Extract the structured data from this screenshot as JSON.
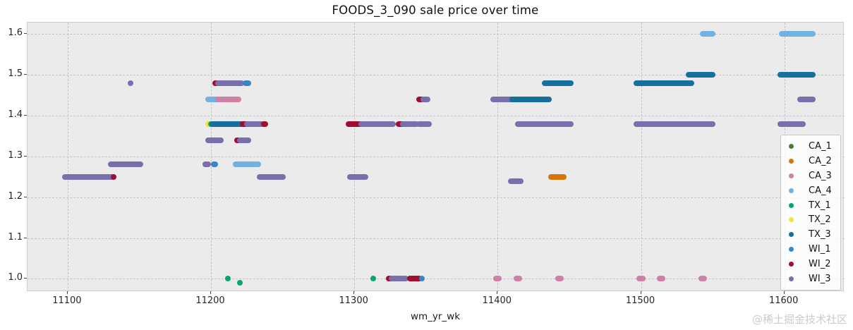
{
  "watermark": "@稀土掘金技术社区",
  "chart_data": {
    "type": "scatter",
    "title": "FOODS_3_090 sale price over time",
    "xlabel": "wm_yr_wk",
    "ylabel": "",
    "grid": true,
    "legend_position": "right",
    "x_ticks": [
      11100,
      11200,
      11300,
      11400,
      11500,
      11600
    ],
    "y_ticks": [
      1.0,
      1.1,
      1.2,
      1.3,
      1.4,
      1.5,
      1.6
    ],
    "x_range": [
      11072,
      11642
    ],
    "y_range": [
      0.968,
      1.628
    ],
    "series": [
      {
        "name": "CA_1",
        "color": "#4f7a28"
      },
      {
        "name": "CA_2",
        "color": "#d9760b"
      },
      {
        "name": "CA_3",
        "color": "#ce80a6"
      },
      {
        "name": "CA_4",
        "color": "#70b3e1"
      },
      {
        "name": "TX_1",
        "color": "#07a66e"
      },
      {
        "name": "TX_2",
        "color": "#f0e442"
      },
      {
        "name": "TX_3",
        "color": "#15709f"
      },
      {
        "name": "WI_1",
        "color": "#3a86c4"
      },
      {
        "name": "WI_2",
        "color": "#a30c31"
      },
      {
        "name": "WI_3",
        "color": "#7a6fad"
      }
    ],
    "points": [
      {
        "s": "WI_3",
        "x1": 11098,
        "x2": 11132,
        "y": 1.25
      },
      {
        "s": "WI_2",
        "x1": 11132,
        "x2": 11132,
        "y": 1.25
      },
      {
        "s": "WI_3",
        "x1": 11130,
        "x2": 11151,
        "y": 1.28
      },
      {
        "s": "WI_3",
        "x1": 11144,
        "x2": 11144,
        "y": 1.48
      },
      {
        "s": "WI_2",
        "x1": 11203,
        "x2": 11205,
        "y": 1.48
      },
      {
        "s": "WI_3",
        "x1": 11205,
        "x2": 11221,
        "y": 1.48
      },
      {
        "s": "WI_1",
        "x1": 11224,
        "x2": 11226,
        "y": 1.48
      },
      {
        "s": "CA_4",
        "x1": 11198,
        "x2": 11206,
        "y": 1.44
      },
      {
        "s": "CA_3",
        "x1": 11205,
        "x2": 11219,
        "y": 1.44
      },
      {
        "s": "TX_2",
        "x1": 11198,
        "x2": 11200,
        "y": 1.38
      },
      {
        "s": "TX_1",
        "x1": 11200,
        "x2": 11201,
        "y": 1.38
      },
      {
        "s": "TX_3",
        "x1": 11201,
        "x2": 11221,
        "y": 1.38
      },
      {
        "s": "WI_2",
        "x1": 11222,
        "x2": 11226,
        "y": 1.38
      },
      {
        "s": "WI_3",
        "x1": 11225,
        "x2": 11236,
        "y": 1.38
      },
      {
        "s": "WI_2",
        "x1": 11237,
        "x2": 11238,
        "y": 1.38
      },
      {
        "s": "WI_3",
        "x1": 11198,
        "x2": 11207,
        "y": 1.34
      },
      {
        "s": "WI_2",
        "x1": 11218,
        "x2": 11219,
        "y": 1.34
      },
      {
        "s": "WI_3",
        "x1": 11220,
        "x2": 11226,
        "y": 1.34
      },
      {
        "s": "WI_3",
        "x1": 11196,
        "x2": 11198,
        "y": 1.28
      },
      {
        "s": "WI_1",
        "x1": 11202,
        "x2": 11203,
        "y": 1.28
      },
      {
        "s": "CA_4",
        "x1": 11217,
        "x2": 11233,
        "y": 1.28
      },
      {
        "s": "WI_3",
        "x1": 11234,
        "x2": 11250,
        "y": 1.25
      },
      {
        "s": "WI_2",
        "x1": 11296,
        "x2": 11306,
        "y": 1.38
      },
      {
        "s": "WI_3",
        "x1": 11305,
        "x2": 11327,
        "y": 1.38
      },
      {
        "s": "WI_2",
        "x1": 11331,
        "x2": 11334,
        "y": 1.38
      },
      {
        "s": "WI_3",
        "x1": 11334,
        "x2": 11343,
        "y": 1.38
      },
      {
        "s": "WI_3",
        "x1": 11345,
        "x2": 11352,
        "y": 1.38
      },
      {
        "s": "WI_2",
        "x1": 11345,
        "x2": 11347,
        "y": 1.44
      },
      {
        "s": "WI_3",
        "x1": 11348,
        "x2": 11351,
        "y": 1.44
      },
      {
        "s": "WI_3",
        "x1": 11297,
        "x2": 11308,
        "y": 1.25
      },
      {
        "s": "TX_1",
        "x1": 11212,
        "x2": 11212,
        "y": 1.0
      },
      {
        "s": "TX_1",
        "x1": 11220,
        "x2": 11220,
        "y": 0.99
      },
      {
        "s": "TX_1",
        "x1": 11313,
        "x2": 11313,
        "y": 1.0
      },
      {
        "s": "WI_2",
        "x1": 11324,
        "x2": 11326,
        "y": 1.0
      },
      {
        "s": "WI_3",
        "x1": 11326,
        "x2": 11336,
        "y": 1.0
      },
      {
        "s": "WI_2",
        "x1": 11339,
        "x2": 11345,
        "y": 1.0
      },
      {
        "s": "WI_1",
        "x1": 11347,
        "x2": 11347,
        "y": 1.0
      },
      {
        "s": "CA_3",
        "x1": 11399,
        "x2": 11401,
        "y": 1.0
      },
      {
        "s": "CA_3",
        "x1": 11413,
        "x2": 11415,
        "y": 1.0
      },
      {
        "s": "CA_3",
        "x1": 11442,
        "x2": 11444,
        "y": 1.0
      },
      {
        "s": "CA_3",
        "x1": 11499,
        "x2": 11501,
        "y": 1.0
      },
      {
        "s": "CA_3",
        "x1": 11513,
        "x2": 11515,
        "y": 1.0
      },
      {
        "s": "CA_3",
        "x1": 11542,
        "x2": 11544,
        "y": 1.0
      },
      {
        "s": "WI_3",
        "x1": 11397,
        "x2": 11412,
        "y": 1.44
      },
      {
        "s": "TX_3",
        "x1": 11410,
        "x2": 11436,
        "y": 1.44
      },
      {
        "s": "TX_3",
        "x1": 11433,
        "x2": 11451,
        "y": 1.48
      },
      {
        "s": "WI_3",
        "x1": 11414,
        "x2": 11451,
        "y": 1.38
      },
      {
        "s": "WI_3",
        "x1": 11409,
        "x2": 11416,
        "y": 1.24
      },
      {
        "s": "CA_2",
        "x1": 11437,
        "x2": 11446,
        "y": 1.25
      },
      {
        "s": "TX_3",
        "x1": 11497,
        "x2": 11535,
        "y": 1.48
      },
      {
        "s": "TX_3",
        "x1": 11533,
        "x2": 11550,
        "y": 1.5
      },
      {
        "s": "CA_4",
        "x1": 11543,
        "x2": 11550,
        "y": 1.6
      },
      {
        "s": "WI_3",
        "x1": 11497,
        "x2": 11550,
        "y": 1.38
      },
      {
        "s": "CA_4",
        "x1": 11598,
        "x2": 11620,
        "y": 1.6
      },
      {
        "s": "TX_3",
        "x1": 11597,
        "x2": 11620,
        "y": 1.5
      },
      {
        "s": "WI_3",
        "x1": 11611,
        "x2": 11620,
        "y": 1.44
      },
      {
        "s": "WI_3",
        "x1": 11597,
        "x2": 11613,
        "y": 1.38
      }
    ]
  }
}
